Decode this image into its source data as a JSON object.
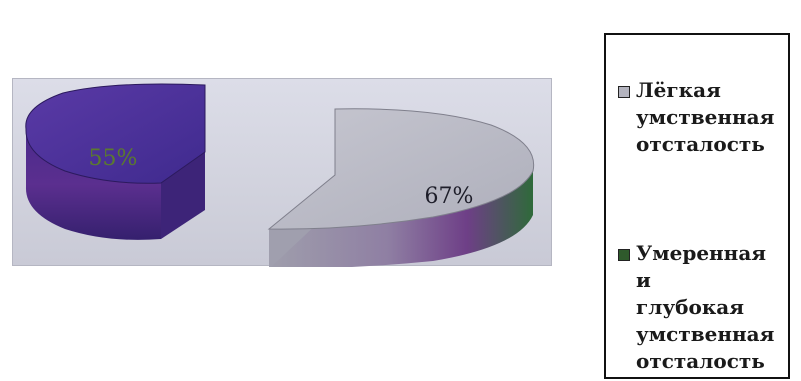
{
  "chart_data": {
    "type": "pie",
    "style": "3d-exploded-halves",
    "grid": false,
    "legend_position": "right",
    "slices": [
      {
        "label": "Лёгкая\nумственная\nотсталость",
        "data_label": "67%",
        "value": 67,
        "color": "#b9bac4",
        "side_color": "#8e8c9c",
        "swatch": "#b4b4bf"
      },
      {
        "label": "Умеренная и\nглубокая\nумственная\nотсталость",
        "data_label": "55%",
        "value": 55,
        "color": "#4b2f97",
        "side_color": "#3a2078",
        "swatch": "#2f5a2c"
      }
    ]
  }
}
